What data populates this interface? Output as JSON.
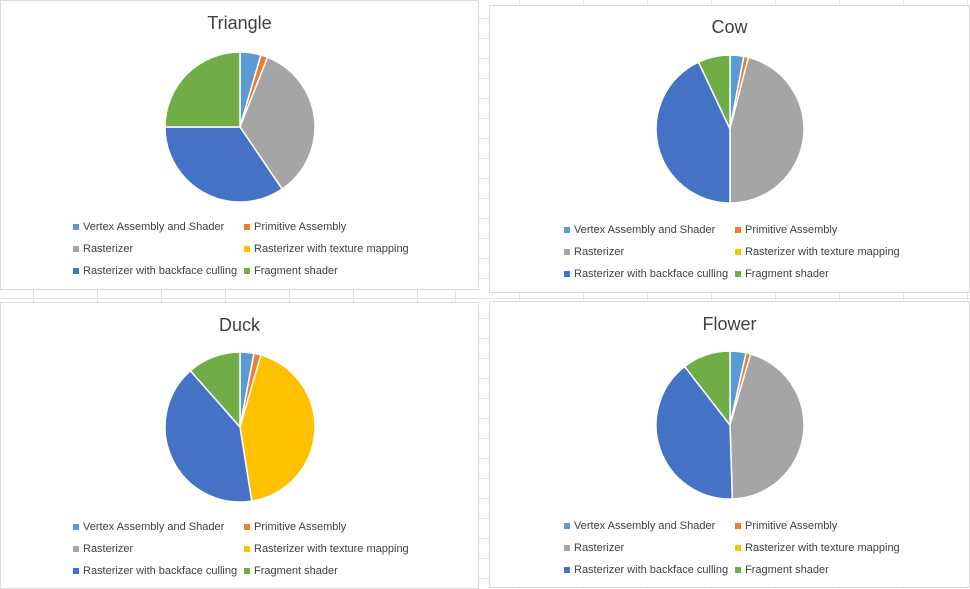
{
  "series_colors": {
    "Vertex Assembly and Shader": "#5b9bd5",
    "Primitive Assembly": "#ed7d31",
    "Rasterizer": "#a5a5a5",
    "Rasterizer with texture mapping": "#ffc000",
    "Rasterizer with backface culling": "#4472c4",
    "Fragment shader": "#70ad47"
  },
  "legend_labels": [
    "Vertex Assembly and Shader",
    "Primitive Assembly",
    "Rasterizer",
    "Rasterizer with texture mapping",
    "Rasterizer with backface culling",
    "Fragment shader"
  ],
  "chart_data": [
    {
      "type": "pie",
      "title": "Triangle",
      "categories": [
        "Vertex Assembly and Shader",
        "Primitive Assembly",
        "Rasterizer",
        "Rasterizer with texture mapping",
        "Rasterizer with backface culling",
        "Fragment shader"
      ],
      "values": [
        4.5,
        1.5,
        34.5,
        0,
        34.5,
        25
      ],
      "legend_position": "bottom"
    },
    {
      "type": "pie",
      "title": "Cow",
      "categories": [
        "Vertex Assembly and Shader",
        "Primitive Assembly",
        "Rasterizer",
        "Rasterizer with texture mapping",
        "Rasterizer with backface culling",
        "Fragment shader"
      ],
      "values": [
        3,
        1,
        46,
        0,
        43,
        7
      ],
      "legend_position": "bottom"
    },
    {
      "type": "pie",
      "title": "Duck",
      "categories": [
        "Vertex Assembly and Shader",
        "Primitive Assembly",
        "Rasterizer",
        "Rasterizer with texture mapping",
        "Rasterizer with backface culling",
        "Fragment shader"
      ],
      "values": [
        3,
        1.5,
        0,
        43,
        41,
        11.5
      ],
      "legend_position": "bottom"
    },
    {
      "type": "pie",
      "title": "Flower",
      "categories": [
        "Vertex Assembly and Shader",
        "Primitive Assembly",
        "Rasterizer",
        "Rasterizer with texture mapping",
        "Rasterizer with backface culling",
        "Fragment shader"
      ],
      "values": [
        3.5,
        1,
        45,
        0,
        40,
        10.5
      ],
      "legend_position": "bottom"
    }
  ]
}
